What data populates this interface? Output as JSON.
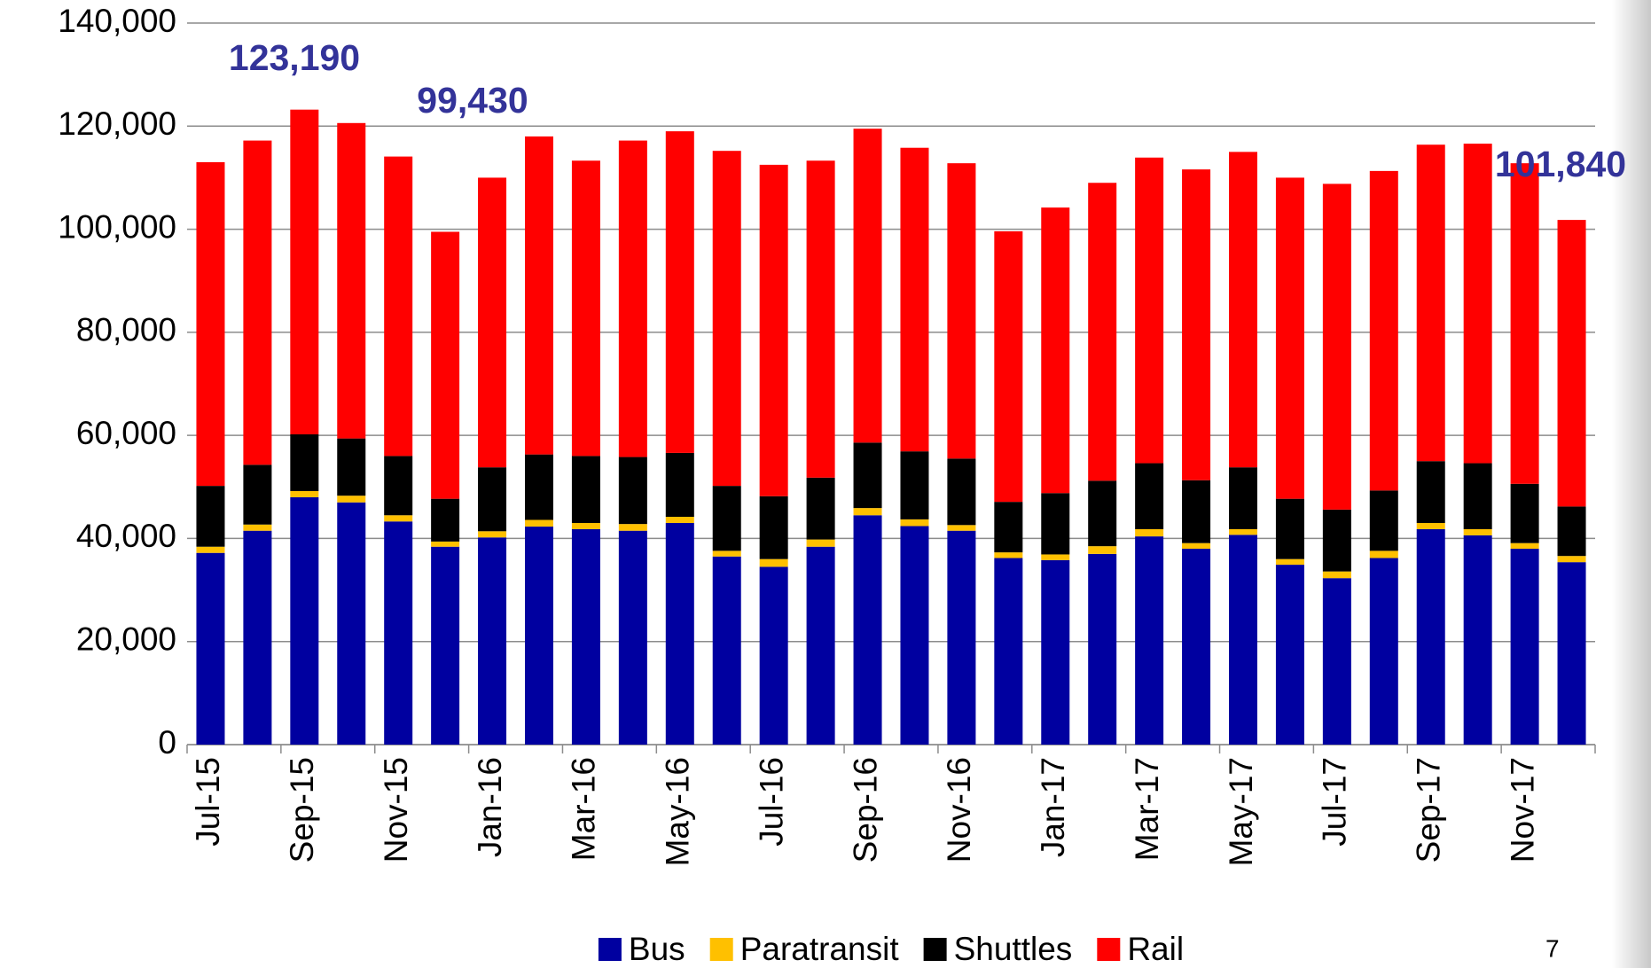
{
  "chart_data": {
    "type": "stacked_bar",
    "categories": [
      "Jul-15",
      null,
      "Sep-15",
      null,
      "Nov-15",
      null,
      "Jan-16",
      null,
      "Mar-16",
      null,
      "May-16",
      null,
      "Jul-16",
      null,
      "Sep-16",
      null,
      "Nov-16",
      null,
      "Jan-17",
      null,
      "Mar-17",
      null,
      "May-17",
      null,
      "Jul-17",
      null,
      "Sep-17",
      null,
      "Nov-17",
      null
    ],
    "series": [
      {
        "name": "Bus",
        "color": "#0000a0",
        "values": [
          37200,
          41500,
          48000,
          47000,
          43300,
          38400,
          40200,
          42300,
          41800,
          41500,
          43000,
          36500,
          34500,
          38400,
          44500,
          42400,
          41500,
          36200,
          35800,
          37000,
          40400,
          38000,
          40700,
          34900,
          32300,
          36200,
          41800,
          40600,
          38000,
          35400
        ]
      },
      {
        "name": "Paratransit",
        "color": "#ffc000",
        "values": [
          1200,
          1200,
          1200,
          1300,
          1200,
          1000,
          1200,
          1300,
          1200,
          1300,
          1200,
          1100,
          1500,
          1400,
          1400,
          1300,
          1100,
          1100,
          1100,
          1500,
          1400,
          1100,
          1100,
          1100,
          1300,
          1400,
          1200,
          1200,
          1100,
          1200
        ]
      },
      {
        "name": "Shuttles",
        "color": "#000000",
        "values": [
          11800,
          11600,
          11000,
          11100,
          11500,
          8300,
          12400,
          12700,
          13000,
          13000,
          12400,
          12600,
          12200,
          12000,
          12700,
          13200,
          12900,
          9800,
          11900,
          12700,
          12800,
          12200,
          12000,
          11700,
          12000,
          11700,
          12000,
          12800,
          11500,
          9600
        ]
      },
      {
        "name": "Rail",
        "color": "#ff0000",
        "values": [
          62800,
          62900,
          63000,
          61200,
          58100,
          51800,
          56200,
          61700,
          57300,
          61400,
          62400,
          65000,
          64300,
          61500,
          60900,
          58900,
          57300,
          52500,
          55400,
          57800,
          59300,
          60300,
          61200,
          62300,
          63200,
          62000,
          61400,
          62000,
          62200,
          55600
        ]
      }
    ],
    "ylim": [
      0,
      140000
    ],
    "yticks": [
      0,
      {
        "value": 20000,
        "label": "20,000"
      },
      {
        "value": 40000,
        "label": "40,000"
      },
      {
        "value": 60000,
        "label": "60,000"
      },
      {
        "value": 80000,
        "label": "80,000"
      },
      {
        "value": 100000,
        "label": "100,000"
      },
      {
        "value": 120000,
        "label": "120,000"
      },
      {
        "value": 140000,
        "label": "140,000"
      }
    ],
    "grid": true,
    "legend": "bottom",
    "annotations": [
      "123,190",
      "99,430",
      "101,840"
    ]
  },
  "page_number": "7"
}
